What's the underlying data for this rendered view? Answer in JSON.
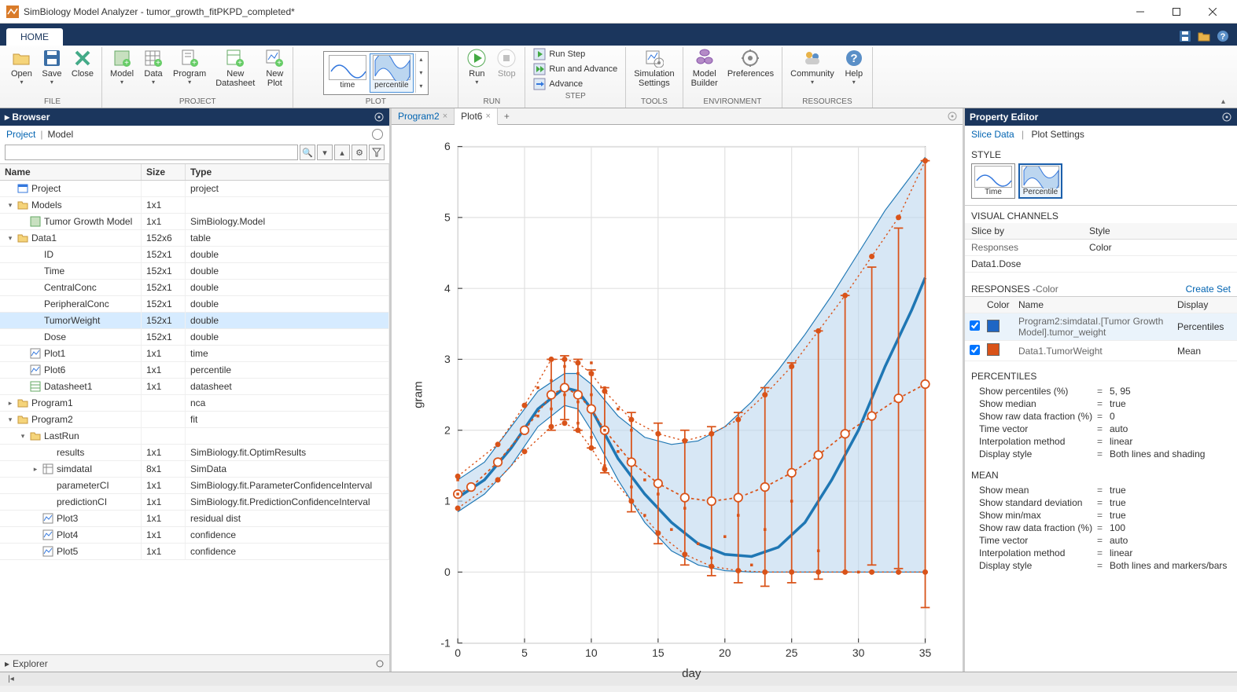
{
  "title": "SimBiology Model Analyzer - tumor_growth_fitPKPD_completed*",
  "home_tab": "HOME",
  "ribbon": {
    "file": {
      "label": "FILE",
      "open": "Open",
      "save": "Save",
      "close": "Close"
    },
    "project": {
      "label": "PROJECT",
      "model": "Model",
      "data": "Data",
      "program": "Program",
      "datasheet": "New\nDatasheet",
      "plot": "New\nPlot"
    },
    "plot": {
      "label": "PLOT",
      "time": "time",
      "percentile": "percentile"
    },
    "run": {
      "label": "RUN",
      "run": "Run",
      "stop": "Stop"
    },
    "step": {
      "label": "STEP",
      "runstep": "Run Step",
      "runadv": "Run and Advance",
      "advance": "Advance"
    },
    "tools": {
      "label": "TOOLS",
      "sim": "Simulation\nSettings"
    },
    "env": {
      "label": "ENVIRONMENT",
      "builder": "Model\nBuilder",
      "prefs": "Preferences"
    },
    "res": {
      "label": "RESOURCES",
      "community": "Community",
      "help": "Help"
    }
  },
  "browser": {
    "title": "Browser",
    "tab_project": "Project",
    "tab_model": "Model",
    "cols": {
      "name": "Name",
      "size": "Size",
      "type": "Type"
    },
    "rows": [
      {
        "depth": 0,
        "tw": "",
        "ico": "proj",
        "name": "Project",
        "size": "",
        "type": "project"
      },
      {
        "depth": 0,
        "tw": "▾",
        "ico": "fold",
        "name": "Models",
        "size": "1x1",
        "type": ""
      },
      {
        "depth": 1,
        "tw": "",
        "ico": "mdl",
        "name": "Tumor Growth Model",
        "size": "1x1",
        "type": "SimBiology.Model"
      },
      {
        "depth": 0,
        "tw": "▾",
        "ico": "fold",
        "name": "Data1",
        "size": "152x6",
        "type": "table"
      },
      {
        "depth": 1,
        "tw": "",
        "ico": "",
        "name": "ID",
        "size": "152x1",
        "type": "double"
      },
      {
        "depth": 1,
        "tw": "",
        "ico": "",
        "name": "Time",
        "size": "152x1",
        "type": "double"
      },
      {
        "depth": 1,
        "tw": "",
        "ico": "",
        "name": "CentralConc",
        "size": "152x1",
        "type": "double"
      },
      {
        "depth": 1,
        "tw": "",
        "ico": "",
        "name": "PeripheralConc",
        "size": "152x1",
        "type": "double"
      },
      {
        "depth": 1,
        "tw": "",
        "ico": "",
        "name": "TumorWeight",
        "size": "152x1",
        "type": "double",
        "sel": true
      },
      {
        "depth": 1,
        "tw": "",
        "ico": "",
        "name": "Dose",
        "size": "152x1",
        "type": "double"
      },
      {
        "depth": 1,
        "tw": "",
        "ico": "plt",
        "name": "Plot1",
        "size": "1x1",
        "type": "time"
      },
      {
        "depth": 1,
        "tw": "",
        "ico": "plt",
        "name": "Plot6",
        "size": "1x1",
        "type": "percentile"
      },
      {
        "depth": 1,
        "tw": "",
        "ico": "ds",
        "name": "Datasheet1",
        "size": "1x1",
        "type": "datasheet"
      },
      {
        "depth": 0,
        "tw": "▸",
        "ico": "fold",
        "name": "Program1",
        "size": "",
        "type": "nca"
      },
      {
        "depth": 0,
        "tw": "▾",
        "ico": "fold",
        "name": "Program2",
        "size": "",
        "type": "fit"
      },
      {
        "depth": 1,
        "tw": "▾",
        "ico": "fold",
        "name": "LastRun",
        "size": "",
        "type": ""
      },
      {
        "depth": 2,
        "tw": "",
        "ico": "",
        "name": "results",
        "size": "1x1",
        "type": "SimBiology.fit.OptimResults"
      },
      {
        "depth": 2,
        "tw": "▸",
        "ico": "tbl",
        "name": "simdataI",
        "size": "8x1",
        "type": "SimData"
      },
      {
        "depth": 2,
        "tw": "",
        "ico": "",
        "name": "parameterCI",
        "size": "1x1",
        "type": "SimBiology.fit.ParameterConfidenceInterval"
      },
      {
        "depth": 2,
        "tw": "",
        "ico": "",
        "name": "predictionCI",
        "size": "1x1",
        "type": "SimBiology.fit.PredictionConfidenceInterval"
      },
      {
        "depth": 2,
        "tw": "",
        "ico": "plt",
        "name": "Plot3",
        "size": "1x1",
        "type": "residual dist"
      },
      {
        "depth": 2,
        "tw": "",
        "ico": "plt",
        "name": "Plot4",
        "size": "1x1",
        "type": "confidence"
      },
      {
        "depth": 2,
        "tw": "",
        "ico": "plt",
        "name": "Plot5",
        "size": "1x1",
        "type": "confidence"
      }
    ],
    "explorer": "Explorer"
  },
  "docs": {
    "program2": "Program2",
    "plot6": "Plot6"
  },
  "chart": {
    "xlabel": "day",
    "ylabel": "gram",
    "xlim": [
      0,
      35
    ],
    "ylim": [
      -1,
      6
    ],
    "xticks": [
      0,
      5,
      10,
      15,
      20,
      25,
      30,
      35
    ],
    "yticks": [
      -1,
      0,
      1,
      2,
      3,
      4,
      5,
      6
    ],
    "colors": {
      "blue": "#1f77b4",
      "blue_fill": "#bdd7ee",
      "orange": "#d95319",
      "grid": "#e0e0e0",
      "axis": "#444"
    },
    "blue_median": [
      [
        0,
        1.05
      ],
      [
        2,
        1.3
      ],
      [
        4,
        1.75
      ],
      [
        6,
        2.3
      ],
      [
        8,
        2.6
      ],
      [
        9,
        2.55
      ],
      [
        10,
        2.3
      ],
      [
        12,
        1.6
      ],
      [
        14,
        1.1
      ],
      [
        16,
        0.7
      ],
      [
        18,
        0.4
      ],
      [
        20,
        0.25
      ],
      [
        22,
        0.22
      ],
      [
        24,
        0.35
      ],
      [
        26,
        0.7
      ],
      [
        28,
        1.3
      ],
      [
        30,
        2.0
      ],
      [
        32,
        2.9
      ],
      [
        34,
        3.7
      ],
      [
        35,
        4.15
      ]
    ],
    "blue_upper": [
      [
        0,
        1.3
      ],
      [
        2,
        1.55
      ],
      [
        4,
        2.05
      ],
      [
        6,
        2.55
      ],
      [
        8,
        2.8
      ],
      [
        9,
        2.8
      ],
      [
        10,
        2.65
      ],
      [
        12,
        2.2
      ],
      [
        14,
        1.9
      ],
      [
        16,
        1.8
      ],
      [
        18,
        1.85
      ],
      [
        20,
        2.05
      ],
      [
        22,
        2.4
      ],
      [
        24,
        2.85
      ],
      [
        26,
        3.35
      ],
      [
        28,
        3.9
      ],
      [
        30,
        4.5
      ],
      [
        32,
        5.1
      ],
      [
        34,
        5.6
      ],
      [
        35,
        5.85
      ]
    ],
    "blue_lower": [
      [
        0,
        0.85
      ],
      [
        2,
        1.1
      ],
      [
        4,
        1.5
      ],
      [
        6,
        2.05
      ],
      [
        8,
        2.35
      ],
      [
        9,
        2.3
      ],
      [
        10,
        2.0
      ],
      [
        12,
        1.3
      ],
      [
        14,
        0.7
      ],
      [
        16,
        0.3
      ],
      [
        18,
        0.1
      ],
      [
        20,
        0.02
      ],
      [
        22,
        0.0
      ],
      [
        24,
        0.0
      ],
      [
        26,
        0.0
      ],
      [
        28,
        0.0
      ],
      [
        30,
        0.0
      ],
      [
        32,
        0.0
      ],
      [
        34,
        0.0
      ],
      [
        35,
        0.0
      ]
    ],
    "orange_mean": [
      [
        0,
        1.1
      ],
      [
        1,
        1.2
      ],
      [
        3,
        1.55
      ],
      [
        5,
        2.0
      ],
      [
        7,
        2.5
      ],
      [
        8,
        2.6
      ],
      [
        9,
        2.5
      ],
      [
        10,
        2.3
      ],
      [
        11,
        2.0
      ],
      [
        13,
        1.55
      ],
      [
        15,
        1.25
      ],
      [
        17,
        1.05
      ],
      [
        19,
        1.0
      ],
      [
        21,
        1.05
      ],
      [
        23,
        1.2
      ],
      [
        25,
        1.4
      ],
      [
        27,
        1.65
      ],
      [
        29,
        1.95
      ],
      [
        31,
        2.2
      ],
      [
        33,
        2.45
      ],
      [
        35,
        2.65
      ]
    ],
    "orange_err": [
      [
        7,
        2.5,
        0.5
      ],
      [
        8,
        2.6,
        0.45
      ],
      [
        9,
        2.5,
        0.5
      ],
      [
        10,
        2.3,
        0.55
      ],
      [
        11,
        2.0,
        0.6
      ],
      [
        13,
        1.55,
        0.7
      ],
      [
        15,
        1.25,
        0.85
      ],
      [
        17,
        1.05,
        0.95
      ],
      [
        19,
        1.0,
        1.05
      ],
      [
        21,
        1.05,
        1.2
      ],
      [
        23,
        1.2,
        1.4
      ],
      [
        25,
        1.4,
        1.55
      ],
      [
        27,
        1.65,
        1.75
      ],
      [
        29,
        1.95,
        1.95
      ],
      [
        31,
        2.2,
        2.1
      ],
      [
        33,
        2.45,
        2.4
      ],
      [
        35,
        2.65,
        3.15
      ]
    ],
    "orange_upper": [
      [
        0,
        1.35
      ],
      [
        3,
        1.8
      ],
      [
        5,
        2.35
      ],
      [
        7,
        3.0
      ],
      [
        8,
        3.0
      ],
      [
        9,
        2.95
      ],
      [
        10,
        2.8
      ],
      [
        11,
        2.55
      ],
      [
        13,
        2.15
      ],
      [
        15,
        1.95
      ],
      [
        17,
        1.85
      ],
      [
        19,
        1.95
      ],
      [
        21,
        2.15
      ],
      [
        23,
        2.5
      ],
      [
        25,
        2.9
      ],
      [
        27,
        3.4
      ],
      [
        29,
        3.9
      ],
      [
        31,
        4.45
      ],
      [
        33,
        5.0
      ],
      [
        35,
        5.8
      ]
    ],
    "orange_lower": [
      [
        0,
        0.9
      ],
      [
        3,
        1.3
      ],
      [
        5,
        1.7
      ],
      [
        7,
        2.05
      ],
      [
        8,
        2.1
      ],
      [
        9,
        2.0
      ],
      [
        10,
        1.75
      ],
      [
        11,
        1.45
      ],
      [
        13,
        1.0
      ],
      [
        15,
        0.55
      ],
      [
        17,
        0.25
      ],
      [
        19,
        0.08
      ],
      [
        21,
        0.02
      ],
      [
        23,
        0.0
      ],
      [
        25,
        0.0
      ],
      [
        27,
        0.0
      ],
      [
        29,
        0.0
      ],
      [
        31,
        0.0
      ],
      [
        33,
        0.0
      ],
      [
        35,
        0.0
      ]
    ],
    "scatter": [
      [
        0,
        1.1
      ],
      [
        0,
        1.3
      ],
      [
        0,
        0.9
      ],
      [
        6,
        2.2
      ],
      [
        6,
        2.6
      ],
      [
        7,
        3.0
      ],
      [
        7,
        2.3
      ],
      [
        7,
        2.7
      ],
      [
        8,
        2.9
      ],
      [
        8,
        2.5
      ],
      [
        8,
        3.0
      ],
      [
        9,
        2.4
      ],
      [
        9,
        2.8
      ],
      [
        9,
        2.1
      ],
      [
        10,
        1.9
      ],
      [
        10,
        2.5
      ],
      [
        10,
        2.95
      ],
      [
        11,
        2.0
      ],
      [
        11,
        2.6
      ],
      [
        11,
        1.5
      ],
      [
        12,
        1.7
      ],
      [
        12,
        2.3
      ],
      [
        13,
        1.2
      ],
      [
        13,
        2.0
      ],
      [
        14,
        1.3
      ],
      [
        14,
        0.8
      ],
      [
        15,
        1.1
      ],
      [
        16,
        0.6
      ],
      [
        17,
        0.9
      ],
      [
        18,
        0.4
      ],
      [
        19,
        0.2
      ],
      [
        20,
        0.5
      ],
      [
        21,
        0.8
      ],
      [
        22,
        0.1
      ],
      [
        23,
        0.6
      ],
      [
        25,
        1.0
      ],
      [
        27,
        0.3
      ],
      [
        30,
        0.0
      ]
    ]
  },
  "propedit": {
    "title": "Property Editor",
    "tab_slice": "Slice Data",
    "tab_plot": "Plot Settings",
    "style_label": "STYLE",
    "style_time": "Time",
    "style_percentile": "Percentile",
    "vc_label": "VISUAL CHANNELS",
    "vc_col1": "Slice by",
    "vc_col2": "Style",
    "vc_r1c1": "Responses",
    "vc_r1c2": "Color",
    "vc_r2c1": "Data1.Dose",
    "vc_r2c2": "",
    "resp_label": "RESPONSES - ",
    "resp_label2": "Color",
    "create_set": "Create Set",
    "resp_cols": {
      "color": "Color",
      "name": "Name",
      "display": "Display"
    },
    "resp_rows": [
      {
        "checked": true,
        "color": "#1f66c4",
        "name": "Program2:simdataI.[Tumor Growth Model].tumor_weight",
        "display": "Percentiles"
      },
      {
        "checked": true,
        "color": "#d95319",
        "name": "Data1.TumorWeight",
        "display": "Mean"
      }
    ],
    "pct_label": "PERCENTILES",
    "pct": [
      {
        "k": "Show percentiles (%)",
        "v": "5, 95"
      },
      {
        "k": "Show median",
        "v": "true"
      },
      {
        "k": "Show raw data fraction (%)",
        "v": "0"
      },
      {
        "k": "Time vector",
        "v": "auto"
      },
      {
        "k": "Interpolation method",
        "v": "linear"
      },
      {
        "k": "Display style",
        "v": "Both lines and shading"
      }
    ],
    "mean_label": "MEAN",
    "mean": [
      {
        "k": "Show mean",
        "v": "true"
      },
      {
        "k": "Show standard deviation",
        "v": "true"
      },
      {
        "k": "Show min/max",
        "v": "true"
      },
      {
        "k": "Show raw data fraction (%)",
        "v": "100"
      },
      {
        "k": "Time vector",
        "v": "auto"
      },
      {
        "k": "Interpolation method",
        "v": "linear"
      },
      {
        "k": "Display style",
        "v": "Both lines and markers/bars"
      }
    ]
  }
}
